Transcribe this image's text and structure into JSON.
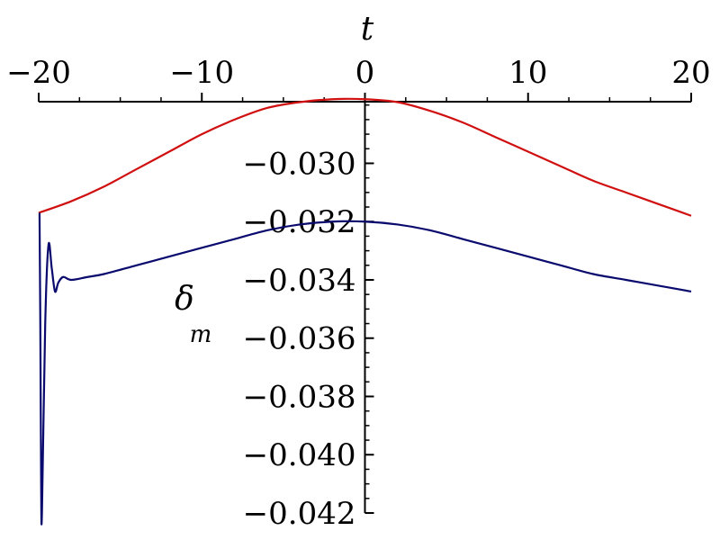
{
  "chart_data": {
    "type": "line",
    "title": "",
    "xlabel": "t",
    "ylabel": "δ",
    "ylabel_subscript": "m",
    "x_axis_position": "top",
    "xlim": [
      -20,
      20
    ],
    "ylim": [
      -0.042,
      -0.0277
    ],
    "x_ticks": [
      -20,
      -10,
      0,
      10,
      20
    ],
    "x_tick_labels": [
      "−20",
      "−10",
      "0",
      "10",
      "20"
    ],
    "y_ticks": [
      -0.03,
      -0.032,
      -0.034,
      -0.036,
      -0.038,
      -0.04,
      -0.042
    ],
    "y_tick_labels": [
      "−0.030",
      "−0.032",
      "−0.034",
      "−0.036",
      "−0.038",
      "−0.040",
      "−0.042"
    ],
    "grid": false,
    "legend": "none",
    "series": [
      {
        "color": "#d01010",
        "x": [
          -20,
          -18,
          -16,
          -14,
          -12,
          -10,
          -8,
          -6,
          -4,
          -2,
          0,
          2,
          4,
          6,
          8,
          10,
          12,
          14,
          16,
          18,
          20
        ],
        "y": [
          -0.0317,
          -0.0313,
          -0.0308,
          -0.0302,
          -0.0296,
          -0.029,
          -0.0285,
          -0.0281,
          -0.0279,
          -0.0278,
          -0.0278,
          -0.0279,
          -0.0282,
          -0.0286,
          -0.0291,
          -0.0296,
          -0.0301,
          -0.0306,
          -0.031,
          -0.0314,
          -0.0318
        ]
      },
      {
        "color": "#0a0a6e",
        "x": [
          -19.95,
          -19.9,
          -19.85,
          -19.8,
          -19.6,
          -19.4,
          -19.2,
          -19.0,
          -18.8,
          -18.5,
          -18.0,
          -17.0,
          -16,
          -14,
          -12,
          -10,
          -8,
          -6,
          -4,
          -2,
          0,
          2,
          4,
          6,
          8,
          10,
          12,
          14,
          16,
          18,
          20
        ],
        "y": [
          -0.0317,
          -0.0356,
          -0.041,
          -0.042,
          -0.0355,
          -0.0328,
          -0.0336,
          -0.0344,
          -0.0341,
          -0.0339,
          -0.034,
          -0.0339,
          -0.0338,
          -0.0335,
          -0.0332,
          -0.0329,
          -0.0326,
          -0.0323,
          -0.0321,
          -0.032,
          -0.032,
          -0.0321,
          -0.0323,
          -0.0326,
          -0.0329,
          -0.0332,
          -0.0335,
          -0.0338,
          -0.034,
          -0.0342,
          -0.0344
        ]
      }
    ]
  }
}
